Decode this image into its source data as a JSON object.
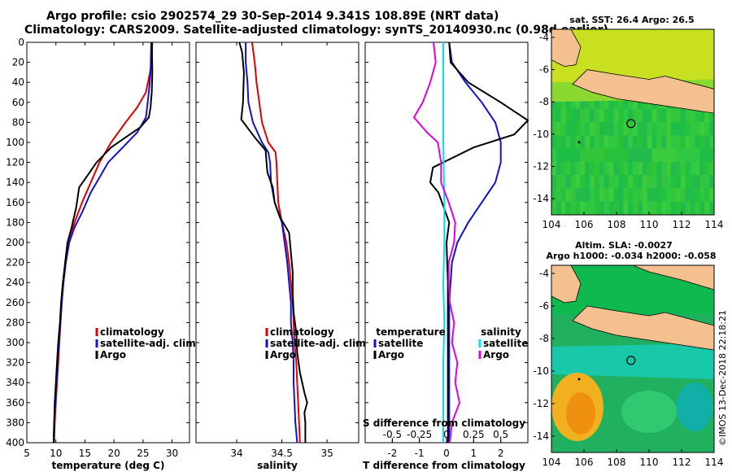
{
  "titles": {
    "line1": "Argo profile: csio 2902574_29 30-Sep-2014 9.341S 108.89E (NRT data)",
    "line2": "Climatology: CARS2009. Satellite-adjusted climatology: synTS_20140930.nc (0.98d earlier)"
  },
  "colors": {
    "climatology": "#e00000",
    "satellite": "#1010d0",
    "argo": "#000000",
    "sal_sat": "#00e0f0",
    "sal_argo": "#e000e0"
  },
  "chart_data": [
    {
      "type": "line",
      "name": "temperature-panel",
      "xlabel": "temperature (deg C)",
      "ylabel": "",
      "xlim": [
        5,
        33
      ],
      "ylim": [
        400,
        0
      ],
      "xticks": [
        5,
        10,
        15,
        20,
        25,
        30
      ],
      "yticks": [
        0,
        20,
        40,
        60,
        80,
        100,
        120,
        140,
        160,
        180,
        200,
        220,
        240,
        260,
        280,
        300,
        320,
        340,
        360,
        380,
        400
      ],
      "legend": [
        "climatology",
        "satellite-adj. clim.",
        "Argo"
      ],
      "legend_position": "bottom-right",
      "series": [
        {
          "name": "climatology",
          "color_key": "climatology",
          "points": [
            [
              26.6,
              0
            ],
            [
              26.5,
              20
            ],
            [
              26.2,
              30
            ],
            [
              25.5,
              50
            ],
            [
              24,
              65
            ],
            [
              22,
              80
            ],
            [
              19.5,
              100
            ],
            [
              17.5,
              120
            ],
            [
              16,
              140
            ],
            [
              14.5,
              160
            ],
            [
              13.2,
              180
            ],
            [
              12.3,
              200
            ],
            [
              11.7,
              220
            ],
            [
              11.3,
              240
            ],
            [
              11,
              260
            ],
            [
              10.8,
              280
            ],
            [
              10.6,
              300
            ],
            [
              10.4,
              320
            ],
            [
              10.2,
              340
            ],
            [
              10,
              360
            ],
            [
              9.8,
              380
            ],
            [
              9.7,
              400
            ]
          ]
        },
        {
          "name": "satellite-adj. clim.",
          "color_key": "satellite",
          "points": [
            [
              26.4,
              0
            ],
            [
              26.3,
              30
            ],
            [
              26,
              50
            ],
            [
              25.8,
              60
            ],
            [
              25.5,
              75
            ],
            [
              24,
              90
            ],
            [
              21.5,
              105
            ],
            [
              19,
              120
            ],
            [
              17.5,
              135
            ],
            [
              16,
              150
            ],
            [
              14.5,
              170
            ],
            [
              13.2,
              185
            ],
            [
              12.3,
              200
            ],
            [
              11.7,
              220
            ],
            [
              11.3,
              240
            ],
            [
              11,
              260
            ],
            [
              10.8,
              280
            ],
            [
              10.5,
              300
            ],
            [
              10.3,
              320
            ],
            [
              10.1,
              340
            ],
            [
              9.9,
              360
            ],
            [
              9.7,
              380
            ],
            [
              9.6,
              400
            ]
          ]
        },
        {
          "name": "Argo",
          "color_key": "argo",
          "points": [
            [
              26.5,
              0
            ],
            [
              26.6,
              30
            ],
            [
              26.5,
              50
            ],
            [
              26.3,
              65
            ],
            [
              26,
              75
            ],
            [
              24.5,
              85
            ],
            [
              22,
              95
            ],
            [
              19.5,
              105
            ],
            [
              17,
              120
            ],
            [
              15.2,
              135
            ],
            [
              14,
              145
            ],
            [
              13.5,
              165
            ],
            [
              12.7,
              185
            ],
            [
              12,
              200
            ],
            [
              11.6,
              220
            ],
            [
              11.2,
              240
            ],
            [
              10.9,
              260
            ],
            [
              10.7,
              280
            ],
            [
              10.4,
              300
            ],
            [
              10.2,
              320
            ],
            [
              10,
              340
            ],
            [
              9.8,
              360
            ],
            [
              9.7,
              380
            ],
            [
              9.6,
              400
            ]
          ]
        }
      ]
    },
    {
      "type": "line",
      "name": "salinity-panel",
      "xlabel": "salinity",
      "ylabel": "",
      "xlim": [
        33.55,
        35.35
      ],
      "ylim": [
        400,
        0
      ],
      "xticks": [
        34,
        34.5,
        35
      ],
      "legend": [
        "climatology",
        "satellite-adj. clim.",
        "Argo"
      ],
      "legend_position": "bottom-right",
      "series": [
        {
          "name": "climatology",
          "color_key": "climatology",
          "points": [
            [
              34.17,
              0
            ],
            [
              34.2,
              20
            ],
            [
              34.22,
              40
            ],
            [
              34.25,
              60
            ],
            [
              34.28,
              80
            ],
            [
              34.35,
              100
            ],
            [
              34.43,
              110
            ],
            [
              34.44,
              120
            ],
            [
              34.45,
              140
            ],
            [
              34.46,
              160
            ],
            [
              34.5,
              180
            ],
            [
              34.55,
              200
            ],
            [
              34.58,
              220
            ],
            [
              34.6,
              240
            ],
            [
              34.62,
              260
            ],
            [
              34.63,
              280
            ],
            [
              34.64,
              300
            ],
            [
              34.66,
              320
            ],
            [
              34.67,
              340
            ],
            [
              34.68,
              360
            ],
            [
              34.69,
              380
            ],
            [
              34.7,
              400
            ]
          ]
        },
        {
          "name": "satellite-adj. clim.",
          "color_key": "satellite",
          "points": [
            [
              34.1,
              0
            ],
            [
              34.1,
              20
            ],
            [
              34.12,
              40
            ],
            [
              34.13,
              60
            ],
            [
              34.18,
              80
            ],
            [
              34.28,
              100
            ],
            [
              34.35,
              110
            ],
            [
              34.37,
              120
            ],
            [
              34.38,
              140
            ],
            [
              34.42,
              160
            ],
            [
              34.5,
              180
            ],
            [
              34.53,
              200
            ],
            [
              34.56,
              220
            ],
            [
              34.58,
              240
            ],
            [
              34.6,
              260
            ],
            [
              34.6,
              280
            ],
            [
              34.62,
              300
            ],
            [
              34.63,
              320
            ],
            [
              34.63,
              340
            ],
            [
              34.64,
              360
            ],
            [
              34.65,
              380
            ],
            [
              34.67,
              400
            ]
          ]
        },
        {
          "name": "Argo",
          "color_key": "argo",
          "points": [
            [
              34.03,
              0
            ],
            [
              34.06,
              10
            ],
            [
              34.08,
              30
            ],
            [
              34.07,
              60
            ],
            [
              34.05,
              77
            ],
            [
              34.2,
              95
            ],
            [
              34.32,
              108
            ],
            [
              34.33,
              120
            ],
            [
              34.34,
              130
            ],
            [
              34.4,
              145
            ],
            [
              34.42,
              160
            ],
            [
              34.48,
              175
            ],
            [
              34.58,
              190
            ],
            [
              34.6,
              210
            ],
            [
              34.62,
              230
            ],
            [
              34.62,
              250
            ],
            [
              34.63,
              270
            ],
            [
              34.66,
              290
            ],
            [
              34.67,
              310
            ],
            [
              34.7,
              330
            ],
            [
              34.75,
              350
            ],
            [
              34.78,
              360
            ],
            [
              34.75,
              370
            ],
            [
              34.76,
              380
            ],
            [
              34.76,
              400
            ]
          ]
        }
      ]
    },
    {
      "type": "line",
      "name": "difference-panel",
      "xlabel": "T difference from climatology",
      "xlabel2": "S difference from climatology",
      "ylabel": "",
      "xlim": [
        -3,
        3
      ],
      "ylim": [
        400,
        0
      ],
      "xticks": [
        -2,
        -1,
        0,
        1,
        2
      ],
      "x2lim": [
        -0.75,
        0.75
      ],
      "x2ticks": [
        -0.5,
        -0.25,
        0,
        0.25,
        0.5
      ],
      "legend_left": {
        "heading": "temperature",
        "items": [
          "satellite",
          "Argo"
        ]
      },
      "legend_right": {
        "heading": "salinity",
        "items": [
          "satellite",
          "Argo"
        ]
      },
      "legend_position": "bottom",
      "series": [
        {
          "name": "T satellite",
          "color_key": "satellite",
          "axis": "T",
          "points": [
            [
              0.1,
              0
            ],
            [
              0.2,
              20
            ],
            [
              0.7,
              40
            ],
            [
              1.3,
              60
            ],
            [
              1.8,
              80
            ],
            [
              2,
              100
            ],
            [
              2,
              120
            ],
            [
              1.8,
              140
            ],
            [
              1.3,
              160
            ],
            [
              0.8,
              180
            ],
            [
              0.4,
              200
            ],
            [
              0.2,
              220
            ],
            [
              0.15,
              240
            ],
            [
              0.1,
              260
            ],
            [
              0.1,
              300
            ],
            [
              0.1,
              340
            ],
            [
              0.1,
              380
            ],
            [
              0.1,
              400
            ]
          ]
        },
        {
          "name": "T Argo",
          "color_key": "argo",
          "axis": "T",
          "points": [
            [
              0.1,
              0
            ],
            [
              0.15,
              20
            ],
            [
              0.8,
              40
            ],
            [
              2,
              60
            ],
            [
              3,
              78
            ],
            [
              2.5,
              92
            ],
            [
              1,
              105
            ],
            [
              -0.5,
              125
            ],
            [
              -0.6,
              140
            ],
            [
              -0.3,
              150
            ],
            [
              0.1,
              180
            ],
            [
              0,
              200
            ],
            [
              0.05,
              240
            ],
            [
              0.05,
              300
            ],
            [
              0.05,
              360
            ],
            [
              0.05,
              400
            ]
          ]
        },
        {
          "name": "S satellite",
          "color_key": "sal_sat",
          "axis": "S",
          "points": [
            [
              -0.03,
              0
            ],
            [
              -0.03,
              40
            ],
            [
              -0.03,
              100
            ],
            [
              -0.02,
              160
            ],
            [
              -0.02,
              200
            ],
            [
              -0.03,
              240
            ],
            [
              -0.02,
              280
            ],
            [
              -0.03,
              320
            ],
            [
              -0.03,
              360
            ],
            [
              -0.03,
              400
            ]
          ]
        },
        {
          "name": "S Argo",
          "color_key": "sal_argo",
          "axis": "S",
          "points": [
            [
              -0.12,
              0
            ],
            [
              -0.1,
              20
            ],
            [
              -0.15,
              40
            ],
            [
              -0.22,
              60
            ],
            [
              -0.3,
              75
            ],
            [
              -0.18,
              90
            ],
            [
              -0.08,
              100
            ],
            [
              -0.05,
              120
            ],
            [
              -0.05,
              140
            ],
            [
              0.02,
              160
            ],
            [
              0.08,
              180
            ],
            [
              0.07,
              200
            ],
            [
              0.02,
              220
            ],
            [
              0.02,
              240
            ],
            [
              0.03,
              260
            ],
            [
              0.07,
              280
            ],
            [
              0.05,
              300
            ],
            [
              0.1,
              320
            ],
            [
              0.08,
              340
            ],
            [
              0.12,
              360
            ],
            [
              0.05,
              380
            ],
            [
              0.03,
              400
            ]
          ]
        }
      ]
    },
    {
      "type": "heatmap",
      "name": "sst-map",
      "title": "sat. SST: 26.4  Argo: 26.5",
      "xlim": [
        104,
        114
      ],
      "ylim": [
        -15,
        -3.5
      ],
      "xticks": [
        104,
        106,
        108,
        110,
        112,
        114
      ],
      "yticks": [
        -4,
        -6,
        -8,
        -10,
        -12,
        -14
      ],
      "marker": [
        108.89,
        -9.341
      ]
    },
    {
      "type": "heatmap",
      "name": "sla-map",
      "title": "Altim. SLA: -0.0027",
      "subtitle": "Argo h1000: -0.034 h2000: -0.058",
      "xlim": [
        104,
        114
      ],
      "ylim": [
        -15,
        -3.5
      ],
      "xticks": [
        104,
        106,
        108,
        110,
        112,
        114
      ],
      "yticks": [
        -4,
        -6,
        -8,
        -10,
        -12,
        -14
      ],
      "marker": [
        108.89,
        -9.341
      ]
    }
  ],
  "legend_labels": {
    "climatology": "climatology",
    "satellite_adj": "satellite-adj. clim.",
    "argo": "Argo",
    "satellite": "satellite",
    "temperature": "temperature",
    "salinity": "salinity"
  },
  "credit": "©IMOS 13-Dec-2018 22:18:21"
}
